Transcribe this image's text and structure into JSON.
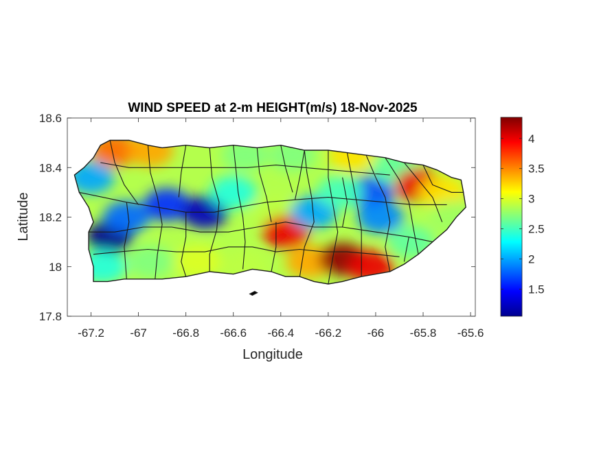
{
  "chart_data": {
    "type": "heatmap",
    "title": "WIND SPEED at 2-m HEIGHT(m/s) 18-Nov-2025",
    "xlabel": "Longitude",
    "ylabel": "Latitude",
    "xlim": [
      -67.3,
      -65.58
    ],
    "ylim": [
      17.8,
      18.6
    ],
    "xticks": [
      -67.2,
      -67,
      -66.8,
      -66.6,
      -66.4,
      -66.2,
      -66,
      -65.8,
      -65.6
    ],
    "xtick_labels": [
      "-67.2",
      "-67",
      "-66.8",
      "-66.6",
      "-66.4",
      "-66.2",
      "-66",
      "-65.8",
      "-65.6"
    ],
    "yticks": [
      17.8,
      18,
      18.2,
      18.4,
      18.6
    ],
    "ytick_labels": [
      "17.8",
      "18",
      "18.2",
      "18.4",
      "18.6"
    ],
    "colorbar": {
      "colormap": "jet",
      "range": [
        1.05,
        4.35
      ],
      "ticks": [
        1.5,
        2,
        2.5,
        3,
        3.5,
        4
      ],
      "tick_labels": [
        "1.5",
        "2",
        "2.5",
        "3",
        "3.5",
        "4"
      ]
    },
    "grid": false,
    "field_samples": [
      {
        "lon": -67.12,
        "lat": 18.12,
        "value": 1.1
      },
      {
        "lon": -67.05,
        "lat": 18.2,
        "value": 1.8
      },
      {
        "lon": -67.2,
        "lat": 18.36,
        "value": 2.0
      },
      {
        "lon": -67.1,
        "lat": 18.47,
        "value": 3.6
      },
      {
        "lon": -66.95,
        "lat": 18.47,
        "value": 3.4
      },
      {
        "lon": -66.88,
        "lat": 18.25,
        "value": 1.6
      },
      {
        "lon": -66.72,
        "lat": 18.22,
        "value": 1.25
      },
      {
        "lon": -66.6,
        "lat": 18.3,
        "value": 2.4
      },
      {
        "lon": -66.55,
        "lat": 18.45,
        "value": 2.7
      },
      {
        "lon": -66.35,
        "lat": 18.45,
        "value": 2.7
      },
      {
        "lon": -66.95,
        "lat": 18.02,
        "value": 2.7
      },
      {
        "lon": -67.15,
        "lat": 18.0,
        "value": 2.4
      },
      {
        "lon": -66.75,
        "lat": 18.02,
        "value": 3.0
      },
      {
        "lon": -66.55,
        "lat": 18.0,
        "value": 2.9
      },
      {
        "lon": -66.42,
        "lat": 18.22,
        "value": 2.9
      },
      {
        "lon": -66.38,
        "lat": 18.14,
        "value": 4.0
      },
      {
        "lon": -66.28,
        "lat": 18.02,
        "value": 3.4
      },
      {
        "lon": -66.26,
        "lat": 18.22,
        "value": 2.0
      },
      {
        "lon": -66.14,
        "lat": 18.03,
        "value": 4.3
      },
      {
        "lon": -66.02,
        "lat": 18.0,
        "value": 4.0
      },
      {
        "lon": -66.02,
        "lat": 18.3,
        "value": 1.7
      },
      {
        "lon": -65.98,
        "lat": 18.2,
        "value": 1.9
      },
      {
        "lon": -66.15,
        "lat": 18.3,
        "value": 2.5
      },
      {
        "lon": -65.92,
        "lat": 18.4,
        "value": 2.6
      },
      {
        "lon": -65.82,
        "lat": 18.33,
        "value": 4.0
      },
      {
        "lon": -65.72,
        "lat": 18.3,
        "value": 3.2
      },
      {
        "lon": -65.85,
        "lat": 18.1,
        "value": 2.6
      },
      {
        "lon": -65.68,
        "lat": 18.2,
        "value": 2.8
      },
      {
        "lon": -66.1,
        "lat": 18.45,
        "value": 3.2
      }
    ]
  }
}
